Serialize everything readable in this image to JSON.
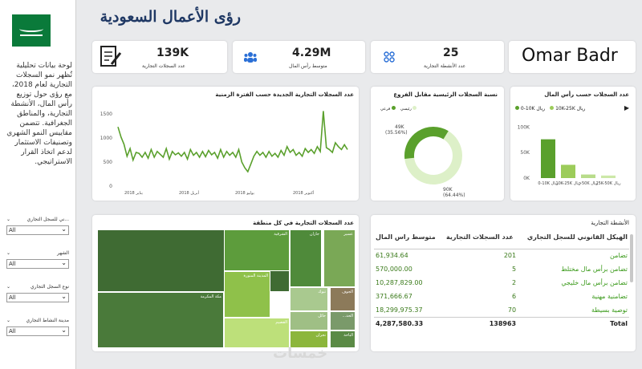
{
  "title": "رؤى الأعمال السعودية",
  "description": "لوحة بيانات تحليلية تُظهر نمو السجلات التجارية لعام 2018، مع رؤى حول توزيع رأس المال، الأنشطة التجارية، والمناطق الجغرافية. تتضمن مقاييس النمو الشهري وتصنيفات الاستثمار لدعم اتخاذ القرار الاستراتيجي.",
  "filters": [
    {
      "label": "...ني للسجل التجاري",
      "value": "All"
    },
    {
      "label": "الشهر",
      "value": "All"
    },
    {
      "label": "نوع السجل التجاري",
      "value": "All"
    },
    {
      "label": "مدينة النشاط التجاري",
      "value": "All"
    }
  ],
  "kpis": [
    {
      "value": "139K",
      "label": "عدد السجلات التجارية",
      "icon": "document-pen-icon"
    },
    {
      "value": "4.29M",
      "label": "متوسط رأس المال",
      "icon": "people-icon"
    },
    {
      "value": "25",
      "label": "عدد الأنشطة التجارية",
      "icon": "grid-icon"
    }
  ],
  "author": "Omar Badr",
  "line_chart_title": "عدد السجلات التجارية الجديدة حسب الفترة الزمنية",
  "donut_chart_title": "نسبة السجلات الرئيسية مقابل الفروع",
  "capital_chart_title": "عدد السجلات حسب رأس المال",
  "treemap_title": "عدد السجلات التجارية في كل منطقة",
  "table_title": "الأنشطة التجارية",
  "chart_data": [
    {
      "type": "line",
      "title": "عدد السجلات التجارية الجديدة حسب الفترة الزمنية",
      "x_ticks": [
        "يناير 2018",
        "أبريل 2018",
        "يوليو 2018",
        "أكتوبر 2018"
      ],
      "y_ticks": [
        0,
        500,
        1000,
        1500
      ],
      "ylim": [
        0,
        1700
      ],
      "color": "#5aa02c",
      "values": [
        1230,
        1020,
        870,
        620,
        780,
        540,
        700,
        680,
        600,
        700,
        580,
        760,
        600,
        720,
        660,
        600,
        780,
        560,
        720,
        650,
        690,
        620,
        700,
        560,
        760,
        640,
        700,
        600,
        720,
        610,
        740,
        650,
        700,
        580,
        760,
        600,
        720,
        640,
        700,
        600,
        760,
        500,
        380,
        300,
        460,
        620,
        720,
        640,
        700,
        600,
        720,
        620,
        680,
        600,
        740,
        640,
        820,
        700,
        760,
        640,
        700,
        620,
        780,
        700,
        760,
        680,
        820,
        720,
        1560,
        800,
        760,
        700,
        900,
        820,
        760,
        860,
        760
      ]
    },
    {
      "type": "pie",
      "title": "نسبة السجلات الرئيسية مقابل الفروع",
      "legend": [
        "رئيسي",
        "فرعي"
      ],
      "slices": [
        {
          "name": "رئيسي",
          "label": "90K",
          "pct_label": "(64.44%)",
          "value": 64.44,
          "color": "#ddf0c8"
        },
        {
          "name": "فرعي",
          "label": "49K",
          "pct_label": "(35.56%)",
          "value": 35.56,
          "color": "#5aa02c"
        }
      ]
    },
    {
      "type": "bar",
      "title": "عدد السجلات حسب رأس المال",
      "legend": [
        "0-10K ريال",
        "10K-25K ريال"
      ],
      "categories": [
        "0-10K ريال",
        "10K-25K ريال",
        ">50K ريال",
        "25K-50K ريال"
      ],
      "values": [
        76000,
        26000,
        7000,
        5000
      ],
      "colors": [
        "#5aa02c",
        "#9ccc5a",
        "#b8dc8a",
        "#cce8a8"
      ],
      "y_ticks": [
        "0K",
        "50K",
        "100K"
      ],
      "ylim": [
        0,
        110000
      ]
    },
    {
      "type": "heatmap",
      "title": "عدد السجلات التجارية في كل منطقة",
      "cells": [
        {
          "label": "الرياض",
          "color": "#3f6b33"
        },
        {
          "label": "مكة المكرمة",
          "color": "#4a7a3a"
        },
        {
          "label": "الشرقية",
          "color": "#5d9c3c"
        },
        {
          "label": "المدينة المنورة",
          "color": "#8fc14a"
        },
        {
          "label": "القصيم",
          "color": "#bde07a"
        },
        {
          "label": "جازان",
          "color": "#4f8a3a"
        },
        {
          "label": "عسير",
          "color": "#7aa856"
        },
        {
          "label": "تبوك",
          "color": "#a9c98f"
        },
        {
          "label": "حائل",
          "color": "#9fbf85"
        },
        {
          "label": "نجران",
          "color": "#8cb63c"
        },
        {
          "label": "الجوف",
          "color": "#8c7a5a"
        },
        {
          "label": "الحد...",
          "color": "#7a9a6a"
        },
        {
          "label": "الباحة",
          "color": "#5a8a45"
        }
      ]
    }
  ],
  "activities_table": {
    "headers": [
      "متوسط راس المال",
      "عدد السجلات التجارية",
      "الهيكل القانوني للسجل التجاري"
    ],
    "rows": [
      {
        "capital": "61,934.64",
        "count": "201",
        "type": "تضامن"
      },
      {
        "capital": "570,000.00",
        "count": "5",
        "type": "تضامن برأس مال مختلط"
      },
      {
        "capital": "10,287,829.00",
        "count": "2",
        "type": "تضامن برأس مال خليجي"
      },
      {
        "capital": "371,666.67",
        "count": "6",
        "type": "تضامنية مهنية"
      },
      {
        "capital": "18,299,975.37",
        "count": "70",
        "type": "توصية بسيطة"
      }
    ],
    "total_label": "Total",
    "total_count": "138963",
    "total_capital": "4,287,580.33"
  },
  "watermark": "خمسات"
}
